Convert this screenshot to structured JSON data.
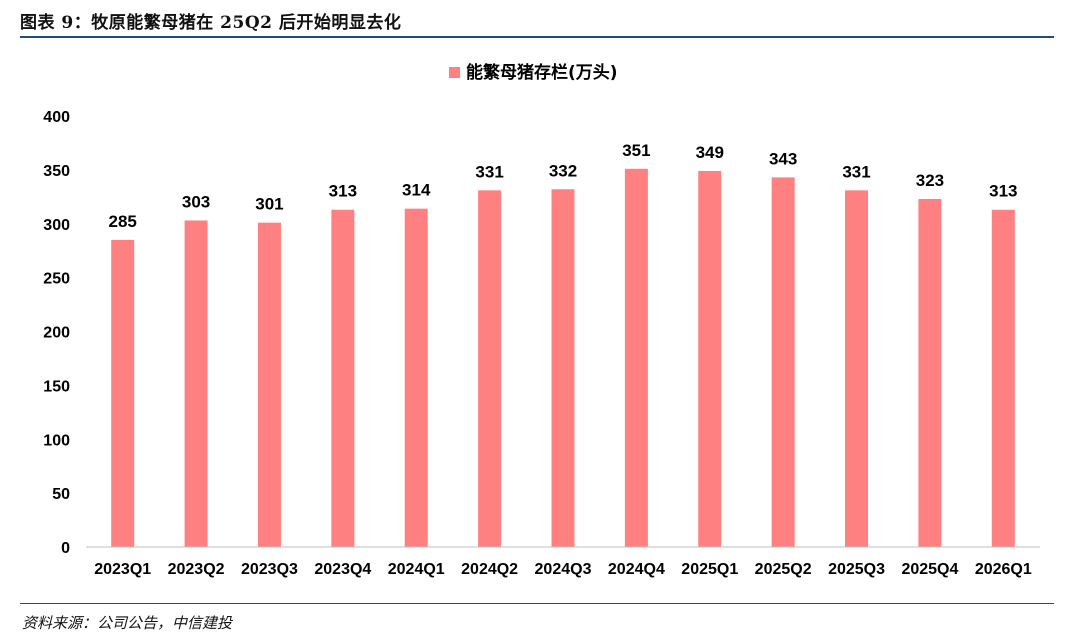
{
  "header": {
    "title": "图表 9：牧原能繁母猪在 25Q2 后开始明显去化"
  },
  "footer": {
    "source": "资料来源：公司公告，中信建投"
  },
  "chart_data": {
    "type": "bar",
    "categories": [
      "2023Q1",
      "2023Q2",
      "2023Q3",
      "2023Q4",
      "2024Q1",
      "2024Q2",
      "2024Q3",
      "2024Q4",
      "2025Q1",
      "2025Q2",
      "2025Q3",
      "2025Q4",
      "2026Q1"
    ],
    "series": [
      {
        "name": "能繁母猪存栏(万头)",
        "values": [
          285,
          303,
          301,
          313,
          314,
          331,
          332,
          351,
          349,
          343,
          331,
          323,
          313
        ],
        "color": "#ff8080"
      }
    ],
    "ylim": [
      0,
      400
    ],
    "yticks": [
      0,
      50,
      100,
      150,
      200,
      250,
      300,
      350,
      400
    ],
    "grid": false,
    "legend": "top-center",
    "data_labels": true
  }
}
